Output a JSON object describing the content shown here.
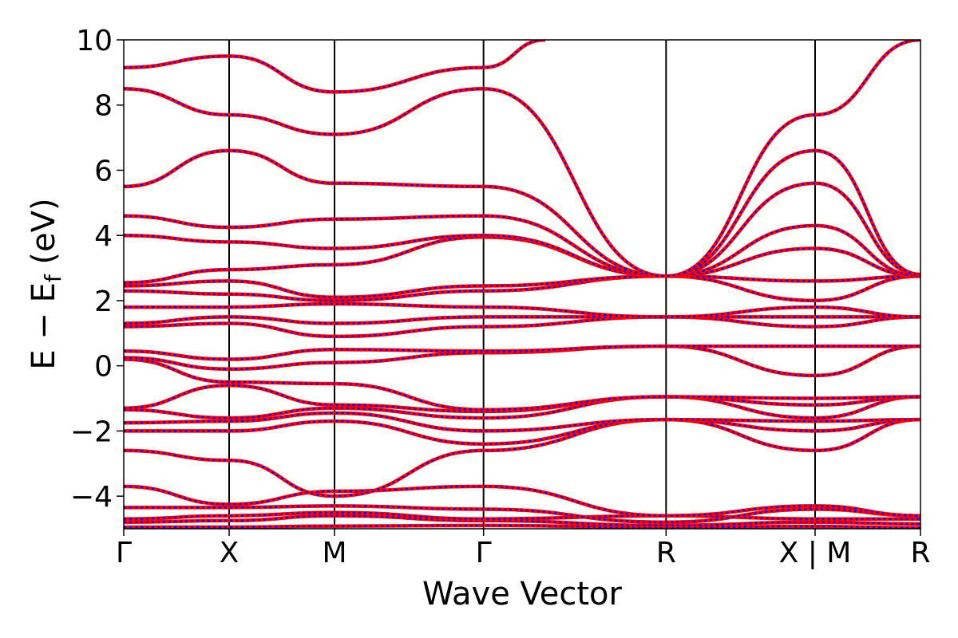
{
  "chart_data": {
    "type": "line",
    "xlabel": "Wave Vector",
    "ylabel_main": "E − E",
    "ylabel_sub": "f",
    "ylabel_unit": " (eV)",
    "ylim": [
      -5,
      10
    ],
    "yticks": [
      {
        "value": -4,
        "label": "−4"
      },
      {
        "value": -2,
        "label": "−2"
      },
      {
        "value": 0,
        "label": "0"
      },
      {
        "value": 2,
        "label": "2"
      },
      {
        "value": 4,
        "label": "4"
      },
      {
        "value": 6,
        "label": "6"
      },
      {
        "value": 8,
        "label": "8"
      },
      {
        "value": 10,
        "label": "10"
      }
    ],
    "kpath": [
      {
        "label": "Γ",
        "pos": 0.0
      },
      {
        "label": "X",
        "pos": 1.0
      },
      {
        "label": "M",
        "pos": 2.0
      },
      {
        "label": "Γ",
        "pos": 3.414
      },
      {
        "label": "R",
        "pos": 5.146
      },
      {
        "label": "X | M",
        "pos": 6.56
      },
      {
        "label": "R",
        "pos": 7.56
      }
    ],
    "grid": false,
    "colors": {
      "series_a": "#ff0000",
      "series_b": "#0000ff"
    },
    "series": [
      {
        "values": [
          [
            0,
            -4.95
          ],
          [
            1,
            -4.95
          ],
          [
            2,
            -4.92
          ],
          [
            3.414,
            -4.9
          ],
          [
            5.146,
            -4.96
          ],
          [
            6.56,
            -4.93
          ],
          [
            7.56,
            -4.97
          ]
        ]
      },
      {
        "values": [
          [
            0,
            -4.8
          ],
          [
            1,
            -4.75
          ],
          [
            2,
            -4.6
          ],
          [
            3.414,
            -4.75
          ],
          [
            5.146,
            -4.9
          ],
          [
            6.56,
            -4.8
          ],
          [
            7.56,
            -4.85
          ]
        ]
      },
      {
        "values": [
          [
            0,
            -4.7
          ],
          [
            1,
            -4.6
          ],
          [
            2,
            -4.5
          ],
          [
            3.414,
            -4.7
          ],
          [
            5.146,
            -4.6
          ],
          [
            6.56,
            -4.7
          ],
          [
            7.56,
            -4.7
          ]
        ]
      },
      {
        "values": [
          [
            0,
            -4.35
          ],
          [
            1,
            -4.35
          ],
          [
            2,
            -4.3
          ],
          [
            3.414,
            -4.4
          ],
          [
            5.146,
            -4.8
          ],
          [
            6.56,
            -4.4
          ],
          [
            7.56,
            -4.6
          ]
        ]
      },
      {
        "values": [
          [
            0,
            -3.7
          ],
          [
            1,
            -4.25
          ],
          [
            2,
            -3.85
          ],
          [
            3.414,
            -3.7
          ],
          [
            5.146,
            -4.6
          ],
          [
            6.56,
            -4.3
          ],
          [
            7.56,
            -4.6
          ]
        ]
      },
      {
        "values": [
          [
            0,
            -2.6
          ],
          [
            1,
            -2.9
          ],
          [
            2,
            -4.0
          ],
          [
            3.414,
            -2.6
          ],
          [
            5.146,
            -1.65
          ],
          [
            6.56,
            -2.6
          ],
          [
            7.56,
            -1.65
          ]
        ]
      },
      {
        "values": [
          [
            0,
            -2.0
          ],
          [
            1,
            -2.0
          ],
          [
            2,
            -1.7
          ],
          [
            3.414,
            -2.4
          ],
          [
            5.146,
            -1.65
          ],
          [
            6.56,
            -2.0
          ],
          [
            7.56,
            -1.65
          ]
        ]
      },
      {
        "values": [
          [
            0,
            -1.75
          ],
          [
            1,
            -1.7
          ],
          [
            2,
            -1.45
          ],
          [
            3.414,
            -2.0
          ],
          [
            5.146,
            -1.65
          ],
          [
            6.56,
            -1.7
          ],
          [
            7.56,
            -1.65
          ]
        ]
      },
      {
        "values": [
          [
            0,
            -1.35
          ],
          [
            1,
            -1.6
          ],
          [
            2,
            -1.3
          ],
          [
            3.414,
            -1.6
          ],
          [
            5.146,
            -0.95
          ],
          [
            6.56,
            -1.6
          ],
          [
            7.56,
            -0.95
          ]
        ]
      },
      {
        "values": [
          [
            0,
            -1.3
          ],
          [
            1,
            -0.6
          ],
          [
            2,
            -1.2
          ],
          [
            3.414,
            -1.4
          ],
          [
            5.146,
            -0.95
          ],
          [
            6.56,
            -1.2
          ],
          [
            7.56,
            -0.95
          ]
        ]
      },
      {
        "values": [
          [
            0,
            0.2
          ],
          [
            1,
            -0.5
          ],
          [
            2,
            -0.55
          ],
          [
            3.414,
            -1.35
          ],
          [
            5.146,
            -0.95
          ],
          [
            6.56,
            -1.0
          ],
          [
            7.56,
            -0.95
          ]
        ]
      },
      {
        "values": [
          [
            0,
            0.25
          ],
          [
            1,
            -0.1
          ],
          [
            2,
            0.1
          ],
          [
            3.414,
            0.4
          ],
          [
            5.146,
            0.6
          ],
          [
            6.56,
            -0.3
          ],
          [
            7.56,
            0.6
          ]
        ]
      },
      {
        "values": [
          [
            0,
            0.45
          ],
          [
            1,
            0.2
          ],
          [
            2,
            0.5
          ],
          [
            3.414,
            0.45
          ],
          [
            5.146,
            0.6
          ],
          [
            6.56,
            0.6
          ],
          [
            7.56,
            0.6
          ]
        ]
      },
      {
        "values": [
          [
            0,
            1.2
          ],
          [
            1,
            1.3
          ],
          [
            2,
            0.9
          ],
          [
            3.414,
            1.2
          ],
          [
            5.146,
            1.5
          ],
          [
            6.56,
            1.2
          ],
          [
            7.56,
            1.5
          ]
        ]
      },
      {
        "values": [
          [
            0,
            1.3
          ],
          [
            1,
            1.5
          ],
          [
            2,
            1.3
          ],
          [
            3.414,
            1.5
          ],
          [
            5.146,
            1.5
          ],
          [
            6.56,
            1.5
          ],
          [
            7.56,
            1.5
          ]
        ]
      },
      {
        "values": [
          [
            0,
            1.8
          ],
          [
            1,
            1.8
          ],
          [
            2,
            1.9
          ],
          [
            3.414,
            1.8
          ],
          [
            5.146,
            1.5
          ],
          [
            6.56,
            1.8
          ],
          [
            7.56,
            1.5
          ]
        ]
      },
      {
        "values": [
          [
            0,
            2.3
          ],
          [
            1,
            2.2
          ],
          [
            2,
            2.0
          ],
          [
            3.414,
            2.3
          ],
          [
            5.146,
            2.75
          ],
          [
            6.56,
            2.0
          ],
          [
            7.56,
            2.75
          ]
        ]
      },
      {
        "values": [
          [
            0,
            2.45
          ],
          [
            1,
            2.6
          ],
          [
            2,
            2.1
          ],
          [
            3.414,
            2.45
          ],
          [
            5.146,
            2.75
          ],
          [
            6.56,
            2.6
          ],
          [
            7.56,
            2.75
          ]
        ]
      },
      {
        "values": [
          [
            0,
            2.55
          ],
          [
            1,
            2.95
          ],
          [
            2,
            3.1
          ],
          [
            3.414,
            3.95
          ],
          [
            5.146,
            2.75
          ],
          [
            6.56,
            3.6
          ],
          [
            7.56,
            2.75
          ]
        ]
      },
      {
        "values": [
          [
            0,
            4.0
          ],
          [
            1,
            3.8
          ],
          [
            2,
            3.6
          ],
          [
            3.414,
            4.0
          ],
          [
            5.146,
            2.75
          ],
          [
            6.56,
            4.3
          ],
          [
            7.56,
            2.75
          ]
        ]
      },
      {
        "values": [
          [
            0,
            4.6
          ],
          [
            1,
            4.25
          ],
          [
            2,
            4.5
          ],
          [
            3.414,
            4.6
          ],
          [
            5.146,
            2.75
          ],
          [
            6.56,
            5.6
          ],
          [
            7.56,
            2.8
          ]
        ]
      },
      {
        "values": [
          [
            0,
            5.5
          ],
          [
            1,
            6.6
          ],
          [
            2,
            5.6
          ],
          [
            3.414,
            5.5
          ],
          [
            5.146,
            2.75
          ],
          [
            6.56,
            6.6
          ],
          [
            7.56,
            2.8
          ]
        ]
      },
      {
        "values": [
          [
            0,
            8.5
          ],
          [
            1,
            7.7
          ],
          [
            2,
            7.1
          ],
          [
            3.414,
            8.5
          ],
          [
            5.146,
            2.75
          ],
          [
            6.56,
            7.7
          ],
          [
            7.56,
            10.0
          ]
        ]
      },
      {
        "values": [
          [
            0,
            9.15
          ],
          [
            1,
            9.5
          ],
          [
            2,
            8.4
          ],
          [
            3.414,
            9.15
          ],
          [
            4.0,
            10.0
          ]
        ]
      }
    ]
  }
}
